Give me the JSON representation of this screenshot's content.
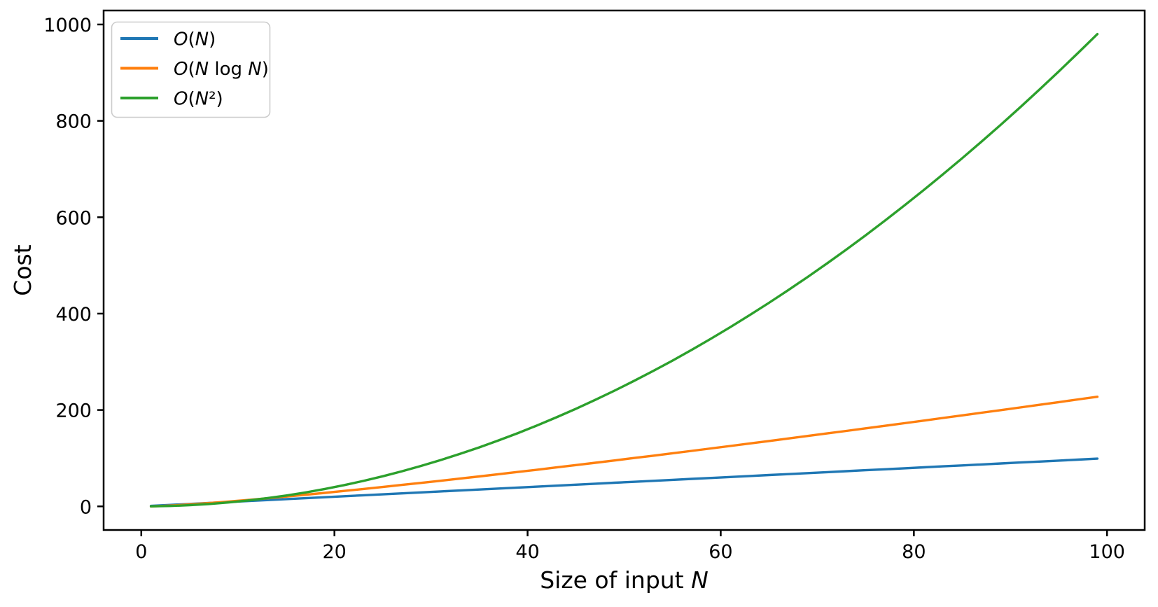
{
  "figure": {
    "background": "#ffffff",
    "spine_color": "#000000",
    "text_color": "#000000"
  },
  "chart_data": {
    "type": "line",
    "title": "",
    "xlabel": "Size of input N",
    "ylabel": "Cost",
    "xlim": [
      -3.9,
      103.9
    ],
    "ylim": [
      -49,
      1029
    ],
    "xticks": [
      0,
      20,
      40,
      60,
      80,
      100
    ],
    "yticks": [
      0,
      200,
      400,
      600,
      800,
      1000
    ],
    "grid": false,
    "legend": {
      "position": "upper left",
      "border_color": "#cccccc",
      "background": "#ffffff",
      "entries": [
        "O(N)",
        "O(N log N)",
        "O(N²)"
      ]
    },
    "x": [
      1,
      3,
      5,
      7,
      9,
      11,
      13,
      15,
      17,
      19,
      21,
      23,
      25,
      27,
      29,
      31,
      33,
      35,
      37,
      39,
      41,
      43,
      45,
      47,
      49,
      51,
      53,
      55,
      57,
      59,
      61,
      63,
      65,
      67,
      69,
      71,
      73,
      75,
      77,
      79,
      81,
      83,
      85,
      87,
      89,
      91,
      93,
      95,
      97,
      99
    ],
    "series": [
      {
        "name": "O(N)",
        "color": "#1f77b4",
        "values": [
          1,
          3,
          5,
          7,
          9,
          11,
          13,
          15,
          17,
          19,
          21,
          23,
          25,
          27,
          29,
          31,
          33,
          35,
          37,
          39,
          41,
          43,
          45,
          47,
          49,
          51,
          53,
          55,
          57,
          59,
          61,
          63,
          65,
          67,
          69,
          71,
          73,
          75,
          77,
          79,
          81,
          83,
          85,
          87,
          89,
          91,
          93,
          95,
          97,
          99
        ]
      },
      {
        "name": "O(N log N)",
        "color": "#ff7f0e",
        "values": [
          0.0,
          1.6,
          4.0,
          6.8,
          9.9,
          13.2,
          16.7,
          20.3,
          24.1,
          28.0,
          32.0,
          36.1,
          40.2,
          44.5,
          48.8,
          53.2,
          57.7,
          62.2,
          66.8,
          71.4,
          76.1,
          80.9,
          85.7,
          90.5,
          95.3,
          100.3,
          105.2,
          110.2,
          115.2,
          120.3,
          125.4,
          130.5,
          135.7,
          140.9,
          146.1,
          151.3,
          156.6,
          161.9,
          167.2,
          172.6,
          178.0,
          183.4,
          188.8,
          194.3,
          199.7,
          205.2,
          210.8,
          216.3,
          221.9,
          227.5
        ]
      },
      {
        "name": "O(N²)",
        "color": "#2ca02c",
        "values": [
          0.1,
          0.9,
          2.5,
          4.9,
          8.1,
          12.1,
          16.9,
          22.5,
          28.9,
          36.1,
          44.1,
          52.9,
          62.5,
          72.9,
          84.1,
          96.1,
          108.9,
          122.5,
          136.9,
          152.1,
          168.1,
          184.9,
          202.5,
          220.9,
          240.1,
          260.1,
          280.9,
          302.5,
          324.9,
          348.1,
          372.1,
          396.9,
          422.5,
          448.9,
          476.1,
          504.1,
          532.9,
          562.5,
          592.9,
          624.1,
          656.1,
          688.9,
          722.5,
          756.9,
          792.1,
          828.1,
          864.9,
          902.5,
          940.9,
          980.1
        ]
      }
    ]
  }
}
